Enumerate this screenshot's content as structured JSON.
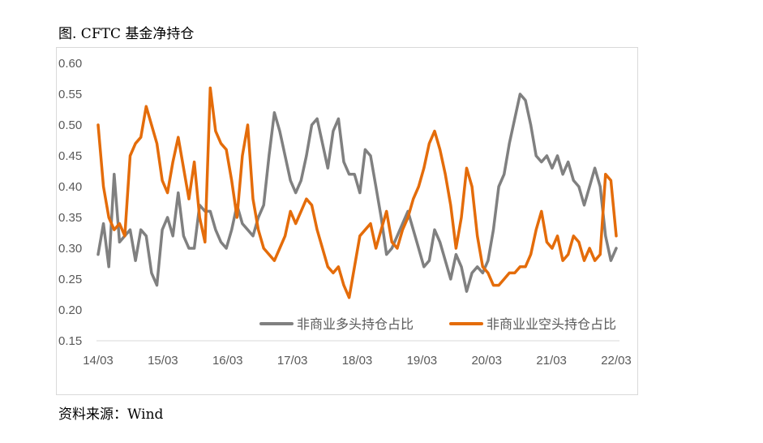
{
  "figure": {
    "title": "图. CFTC 基金净持仓",
    "source": "资料来源：Wind"
  },
  "chart_data": {
    "type": "line",
    "title": "",
    "xlabel": "",
    "ylabel": "",
    "ylim": [
      0.15,
      0.6
    ],
    "yticks": [
      "0.60",
      "0.55",
      "0.50",
      "0.45",
      "0.40",
      "0.35",
      "0.30",
      "0.25",
      "0.20",
      "0.15"
    ],
    "xticks": [
      "14/03",
      "15/03",
      "16/03",
      "17/03",
      "18/03",
      "19/03",
      "20/03",
      "21/03",
      "22/03"
    ],
    "x_start_year": 2014.2,
    "step_years": 0.0833,
    "legend_position": "bottom-right",
    "series": [
      {
        "name": "非商业多头持仓占比",
        "color": "#808080",
        "values": [
          0.29,
          0.34,
          0.27,
          0.42,
          0.31,
          0.32,
          0.33,
          0.28,
          0.33,
          0.32,
          0.26,
          0.24,
          0.33,
          0.35,
          0.32,
          0.39,
          0.32,
          0.3,
          0.3,
          0.37,
          0.36,
          0.36,
          0.33,
          0.31,
          0.3,
          0.33,
          0.37,
          0.34,
          0.33,
          0.32,
          0.35,
          0.37,
          0.45,
          0.52,
          0.49,
          0.45,
          0.41,
          0.39,
          0.41,
          0.45,
          0.5,
          0.51,
          0.47,
          0.43,
          0.49,
          0.51,
          0.44,
          0.42,
          0.42,
          0.39,
          0.46,
          0.45,
          0.4,
          0.35,
          0.29,
          0.3,
          0.32,
          0.34,
          0.36,
          0.33,
          0.3,
          0.27,
          0.28,
          0.33,
          0.31,
          0.28,
          0.25,
          0.29,
          0.27,
          0.23,
          0.26,
          0.27,
          0.26,
          0.28,
          0.33,
          0.4,
          0.42,
          0.47,
          0.51,
          0.55,
          0.54,
          0.5,
          0.45,
          0.44,
          0.45,
          0.43,
          0.45,
          0.42,
          0.44,
          0.41,
          0.4,
          0.37,
          0.4,
          0.43,
          0.4,
          0.32,
          0.28,
          0.3
        ]
      },
      {
        "name": "非商业业空头持仓占比",
        "color": "#e46c0a",
        "values": [
          0.5,
          0.4,
          0.35,
          0.33,
          0.34,
          0.32,
          0.45,
          0.47,
          0.48,
          0.53,
          0.5,
          0.47,
          0.41,
          0.39,
          0.44,
          0.48,
          0.43,
          0.38,
          0.44,
          0.35,
          0.31,
          0.56,
          0.49,
          0.47,
          0.46,
          0.41,
          0.35,
          0.45,
          0.5,
          0.38,
          0.33,
          0.3,
          0.29,
          0.28,
          0.3,
          0.32,
          0.36,
          0.34,
          0.36,
          0.38,
          0.37,
          0.33,
          0.3,
          0.27,
          0.26,
          0.27,
          0.24,
          0.22,
          0.27,
          0.32,
          0.33,
          0.34,
          0.3,
          0.33,
          0.36,
          0.31,
          0.3,
          0.33,
          0.35,
          0.38,
          0.4,
          0.43,
          0.47,
          0.49,
          0.46,
          0.42,
          0.37,
          0.3,
          0.35,
          0.43,
          0.4,
          0.32,
          0.27,
          0.26,
          0.24,
          0.24,
          0.25,
          0.26,
          0.26,
          0.27,
          0.27,
          0.29,
          0.33,
          0.36,
          0.31,
          0.3,
          0.32,
          0.28,
          0.29,
          0.32,
          0.31,
          0.28,
          0.3,
          0.28,
          0.29,
          0.42,
          0.41,
          0.32
        ]
      }
    ]
  }
}
